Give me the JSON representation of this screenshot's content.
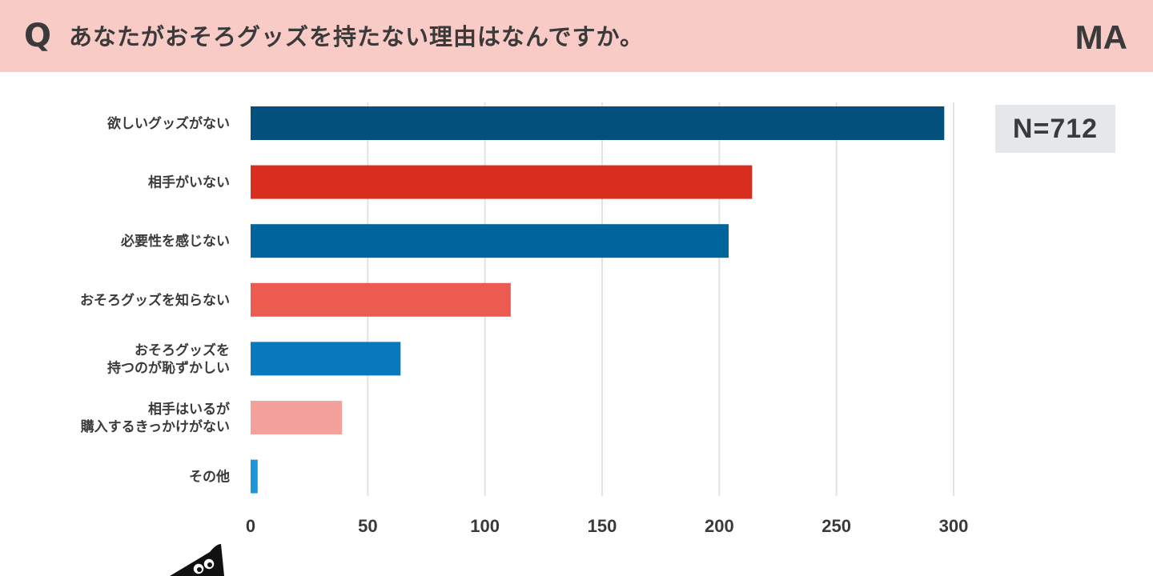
{
  "header": {
    "q_label": "Q",
    "question": "あなたがおそろグッズを持たない理由はなんですか。",
    "answer_type": "MA"
  },
  "sample": {
    "n_label": "N=712"
  },
  "colors": {
    "header_bg": "#f9cbc7",
    "grid": "#e3e3e3",
    "badge_bg": "#e5e8eb",
    "text": "#3a3a3a"
  },
  "chart_data": {
    "type": "bar",
    "orientation": "horizontal",
    "title": "",
    "xlabel": "",
    "ylabel": "",
    "xlim": [
      0,
      300
    ],
    "x_ticks": [
      0,
      50,
      100,
      150,
      200,
      250,
      300
    ],
    "grid": true,
    "categories": [
      [
        "欲しいグッズがない"
      ],
      [
        "相手がいない"
      ],
      [
        "必要性を感じない"
      ],
      [
        "おそろグッズを知らない"
      ],
      [
        "おそろグッズを",
        "持つのが恥ずかしい"
      ],
      [
        "相手はいるが",
        "購入するきっかけがない"
      ],
      [
        "その他"
      ]
    ],
    "values": [
      296,
      214,
      204,
      111,
      64,
      39,
      3
    ],
    "bar_colors": [
      "#02507b",
      "#d92d1f",
      "#02649c",
      "#eb5b4f",
      "#0879bd",
      "#f4a09b",
      "#1b95dc"
    ]
  }
}
